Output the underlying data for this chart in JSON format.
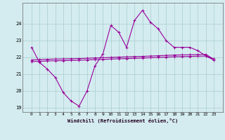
{
  "xlabel": "Windchill (Refroidissement éolien,°C)",
  "hours": [
    0,
    1,
    2,
    3,
    4,
    5,
    6,
    7,
    8,
    9,
    10,
    11,
    12,
    13,
    14,
    15,
    16,
    17,
    18,
    19,
    20,
    21,
    22,
    23
  ],
  "windchill": [
    22.6,
    21.7,
    21.3,
    20.8,
    19.9,
    19.4,
    19.1,
    20.0,
    21.5,
    22.2,
    23.9,
    23.5,
    22.6,
    24.2,
    24.8,
    24.1,
    23.7,
    23.0,
    22.6,
    22.6,
    22.6,
    22.4,
    22.1,
    21.9
  ],
  "line_upper": [
    21.85,
    21.87,
    21.89,
    21.9,
    21.91,
    21.92,
    21.93,
    21.95,
    21.97,
    21.98,
    22.0,
    22.02,
    22.03,
    22.05,
    22.06,
    22.08,
    22.1,
    22.12,
    22.14,
    22.15,
    22.16,
    22.17,
    22.18,
    21.9
  ],
  "line_lower": [
    21.75,
    21.77,
    21.79,
    21.8,
    21.81,
    21.82,
    21.83,
    21.85,
    21.87,
    21.88,
    21.9,
    21.92,
    21.93,
    21.95,
    21.96,
    21.98,
    22.0,
    22.02,
    22.04,
    22.05,
    22.06,
    22.07,
    22.08,
    21.85
  ],
  "line_color": "#990099",
  "bg_color": "#d4ecf0",
  "grid_color": "#aacccc",
  "ylim": [
    18.75,
    25.25
  ],
  "yticks": [
    19,
    20,
    21,
    22,
    23,
    24
  ],
  "xticks": [
    0,
    1,
    2,
    3,
    4,
    5,
    6,
    7,
    8,
    9,
    10,
    11,
    12,
    13,
    14,
    15,
    16,
    17,
    18,
    19,
    20,
    21,
    22,
    23
  ]
}
